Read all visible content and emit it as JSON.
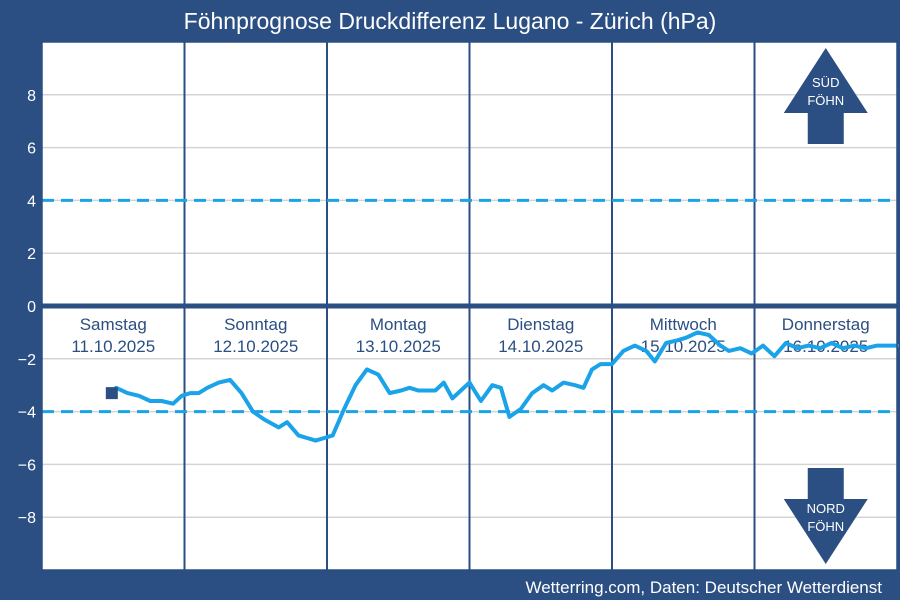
{
  "colors": {
    "background": "#2b4f82",
    "plot_bg": "#ffffff",
    "grid": "#d4d4d4",
    "series": "#1aa3e8",
    "threshold": "#1aa3e8",
    "zero_line": "#2b4f82",
    "arrow": "#2b4f82"
  },
  "chart_data": {
    "type": "line",
    "title": "Föhnprognose Druckdifferenz Lugano - Zürich (hPa)",
    "source": "Wetterring.com, Daten: Deutscher Wetterdienst",
    "ylim": [
      -10,
      10
    ],
    "xlim": [
      0,
      6
    ],
    "yticks": [
      8,
      6,
      4,
      2,
      0,
      -2,
      -4,
      -6,
      -8
    ],
    "ytick_labels": [
      "8",
      "6",
      "4",
      "2",
      "0",
      "−2",
      "−4",
      "−6",
      "−8"
    ],
    "thresholds": [
      4,
      -4
    ],
    "day_boundaries": [
      1,
      2,
      3,
      4,
      5
    ],
    "days": [
      {
        "weekday": "Samstag",
        "date": "11.10.2025"
      },
      {
        "weekday": "Sonntag",
        "date": "12.10.2025"
      },
      {
        "weekday": "Montag",
        "date": "13.10.2025"
      },
      {
        "weekday": "Dienstag",
        "date": "14.10.2025"
      },
      {
        "weekday": "Mittwoch",
        "date": "15.10.2025"
      },
      {
        "weekday": "Donnerstag",
        "date": "16.10.2025"
      }
    ],
    "start_marker": {
      "x": 0.49,
      "y": -3.3
    },
    "series": [
      {
        "name": "Druckdifferenz Lugano - Zürich",
        "x": [
          0.52,
          0.6,
          0.68,
          0.76,
          0.84,
          0.92,
          0.98,
          1.04,
          1.1,
          1.16,
          1.24,
          1.32,
          1.4,
          1.48,
          1.56,
          1.66,
          1.72,
          1.8,
          1.86,
          1.92,
          1.98,
          2.04,
          2.12,
          2.2,
          2.28,
          2.36,
          2.44,
          2.52,
          2.58,
          2.64,
          2.7,
          2.76,
          2.82,
          2.88,
          2.94,
          3.0,
          3.08,
          3.16,
          3.22,
          3.28,
          3.36,
          3.44,
          3.52,
          3.58,
          3.66,
          3.74,
          3.8,
          3.86,
          3.92,
          4.0,
          4.08,
          4.16,
          4.24,
          4.3,
          4.38,
          4.46,
          4.52,
          4.6,
          4.68,
          4.76,
          4.82,
          4.9,
          4.98,
          5.06,
          5.14,
          5.22,
          5.3,
          5.38,
          5.46,
          5.54,
          5.62,
          5.7,
          5.78,
          5.86,
          5.94,
          6.0
        ],
        "values": [
          -3.1,
          -3.3,
          -3.4,
          -3.6,
          -3.6,
          -3.7,
          -3.4,
          -3.3,
          -3.3,
          -3.1,
          -2.9,
          -2.8,
          -3.3,
          -4.0,
          -4.3,
          -4.6,
          -4.4,
          -4.9,
          -5.0,
          -5.1,
          -5.0,
          -4.9,
          -3.9,
          -3.0,
          -2.4,
          -2.6,
          -3.3,
          -3.2,
          -3.1,
          -3.2,
          -3.2,
          -3.2,
          -2.9,
          -3.5,
          -3.2,
          -2.9,
          -3.6,
          -3.0,
          -3.1,
          -4.2,
          -3.9,
          -3.3,
          -3.0,
          -3.2,
          -2.9,
          -3.0,
          -3.1,
          -2.4,
          -2.2,
          -2.2,
          -1.7,
          -1.5,
          -1.7,
          -2.1,
          -1.4,
          -1.3,
          -1.2,
          -1.0,
          -1.1,
          -1.5,
          -1.7,
          -1.6,
          -1.8,
          -1.5,
          -1.9,
          -1.4,
          -1.6,
          -1.5,
          -1.6,
          -1.4,
          -1.6,
          -1.5,
          -1.6,
          -1.5,
          -1.5,
          -1.5
        ]
      }
    ],
    "annotations": {
      "south_arrow": [
        "SÜD",
        "FÖHN"
      ],
      "north_arrow": [
        "NORD",
        "FÖHN"
      ]
    }
  }
}
